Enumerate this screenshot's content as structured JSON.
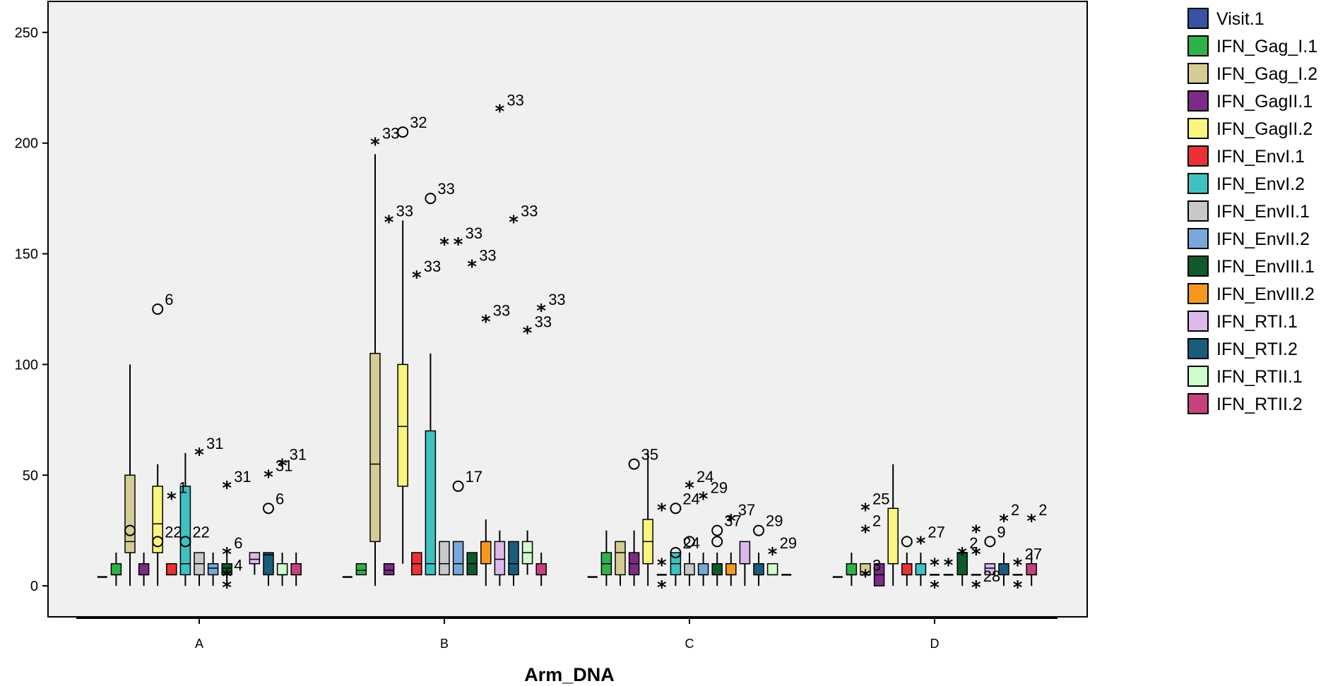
{
  "chart_data": {
    "type": "boxplot",
    "xlabel": "Arm_DNA",
    "ylabel": "",
    "ylim": [
      -14,
      264
    ],
    "yticks": [
      0,
      50,
      100,
      150,
      200,
      250
    ],
    "categories": [
      "A",
      "B",
      "C",
      "D"
    ],
    "series": [
      {
        "name": "Visit.1",
        "color": "#3953a4"
      },
      {
        "name": "IFN_Gag_I.1",
        "color": "#2eb24a"
      },
      {
        "name": "IFN_Gag_I.2",
        "color": "#d3cc95"
      },
      {
        "name": "IFN_GagII.1",
        "color": "#7c2b86"
      },
      {
        "name": "IFN_GagII.2",
        "color": "#f9f57e"
      },
      {
        "name": "IFN_EnvI.1",
        "color": "#ec3135"
      },
      {
        "name": "IFN_EnvI.2",
        "color": "#3fc1c2"
      },
      {
        "name": "IFN_EnvII.1",
        "color": "#c8c8c8"
      },
      {
        "name": "IFN_EnvII.2",
        "color": "#7aa7d9"
      },
      {
        "name": "IFN_EnvIII.1",
        "color": "#0f5a2b"
      },
      {
        "name": "IFN_EnvIII.2",
        "color": "#f6981f"
      },
      {
        "name": "IFN_RTI.1",
        "color": "#dbb9ea"
      },
      {
        "name": "IFN_RTI.2",
        "color": "#1b5c7c"
      },
      {
        "name": "IFN_RTII.1",
        "color": "#cffccc"
      },
      {
        "name": "IFN_RTII.2",
        "color": "#c6417d"
      }
    ],
    "groups": [
      {
        "category": "A",
        "boxes": [
          {
            "series": 0,
            "min": 4,
            "q1": 4,
            "median": 4,
            "q3": 4,
            "max": 4
          },
          {
            "series": 1,
            "min": 0,
            "q1": 5,
            "median": 5,
            "q3": 10,
            "max": 15
          },
          {
            "series": 2,
            "min": 0,
            "q1": 15,
            "median": 20,
            "q3": 50,
            "max": 100
          },
          {
            "series": 3,
            "min": 0,
            "q1": 5,
            "median": 5,
            "q3": 10,
            "max": 15
          },
          {
            "series": 4,
            "min": 0,
            "q1": 15,
            "median": 28,
            "q3": 45,
            "max": 55
          },
          {
            "series": 5,
            "min": 5,
            "q1": 5,
            "median": 5,
            "q3": 10,
            "max": 10
          },
          {
            "series": 6,
            "min": 0,
            "q1": 5,
            "median": 10,
            "q3": 45,
            "max": 60
          },
          {
            "series": 7,
            "min": 0,
            "q1": 5,
            "median": 10,
            "q3": 15,
            "max": 15
          },
          {
            "series": 8,
            "min": 0,
            "q1": 5,
            "median": 8,
            "q3": 10,
            "max": 15
          },
          {
            "series": 9,
            "min": 0,
            "q1": 5,
            "median": 8,
            "q3": 10,
            "max": 15
          },
          {
            "series": 11,
            "min": 5,
            "q1": 10,
            "median": 12,
            "q3": 15,
            "max": 15
          },
          {
            "series": 12,
            "min": 0,
            "q1": 5,
            "median": 14,
            "q3": 15,
            "max": 15
          },
          {
            "series": 13,
            "min": 0,
            "q1": 5,
            "median": 5,
            "q3": 10,
            "max": 15
          },
          {
            "series": 14,
            "min": 0,
            "q1": 5,
            "median": 5,
            "q3": 10,
            "max": 15
          }
        ],
        "outliers": [
          {
            "series": 2,
            "value": 25,
            "kind": "circle",
            "label": ""
          },
          {
            "series": 4,
            "value": 125,
            "kind": "circle",
            "label": "6"
          },
          {
            "series": 4,
            "value": 20,
            "kind": "circle",
            "label": "22"
          },
          {
            "series": 5,
            "value": 40,
            "kind": "star",
            "label": "1"
          },
          {
            "series": 6,
            "value": 20,
            "kind": "circle",
            "label": "22"
          },
          {
            "series": 7,
            "value": 60,
            "kind": "star",
            "label": "31"
          },
          {
            "series": 9,
            "value": 45,
            "kind": "star",
            "label": "31"
          },
          {
            "series": 9,
            "value": 15,
            "kind": "star",
            "label": "6"
          },
          {
            "series": 9,
            "value": 5,
            "kind": "star",
            "label": "4"
          },
          {
            "series": 9,
            "value": 0,
            "kind": "star",
            "label": ""
          },
          {
            "series": 12,
            "value": 50,
            "kind": "star",
            "label": "31"
          },
          {
            "series": 12,
            "value": 35,
            "kind": "circle",
            "label": "6"
          },
          {
            "series": 13,
            "value": 55,
            "kind": "star",
            "label": "31"
          }
        ]
      },
      {
        "category": "B",
        "boxes": [
          {
            "series": 0,
            "min": 4,
            "q1": 4,
            "median": 4,
            "q3": 4,
            "max": 4
          },
          {
            "series": 1,
            "min": 5,
            "q1": 5,
            "median": 7,
            "q3": 10,
            "max": 10
          },
          {
            "series": 2,
            "min": 0,
            "q1": 20,
            "median": 55,
            "q3": 105,
            "max": 195
          },
          {
            "series": 3,
            "min": 5,
            "q1": 5,
            "median": 7,
            "q3": 10,
            "max": 10
          },
          {
            "series": 4,
            "min": 10,
            "q1": 45,
            "median": 72,
            "q3": 100,
            "max": 165
          },
          {
            "series": 5,
            "min": 5,
            "q1": 5,
            "median": 10,
            "q3": 15,
            "max": 15
          },
          {
            "series": 6,
            "min": 5,
            "q1": 5,
            "median": 10,
            "q3": 70,
            "max": 105
          },
          {
            "series": 7,
            "min": 5,
            "q1": 5,
            "median": 10,
            "q3": 20,
            "max": 20
          },
          {
            "series": 8,
            "min": 5,
            "q1": 5,
            "median": 10,
            "q3": 20,
            "max": 20
          },
          {
            "series": 9,
            "min": 5,
            "q1": 5,
            "median": 10,
            "q3": 15,
            "max": 15
          },
          {
            "series": 10,
            "min": 0,
            "q1": 10,
            "median": 20,
            "q3": 20,
            "max": 30
          },
          {
            "series": 11,
            "min": 0,
            "q1": 5,
            "median": 12,
            "q3": 20,
            "max": 25
          },
          {
            "series": 12,
            "min": 0,
            "q1": 5,
            "median": 10,
            "q3": 20,
            "max": 20
          },
          {
            "series": 13,
            "min": 5,
            "q1": 10,
            "median": 15,
            "q3": 20,
            "max": 25
          },
          {
            "series": 14,
            "min": 0,
            "q1": 5,
            "median": 5,
            "q3": 10,
            "max": 15
          }
        ],
        "outliers": [
          {
            "series": 2,
            "value": 200,
            "kind": "star",
            "label": "33"
          },
          {
            "series": 3,
            "value": 165,
            "kind": "star",
            "label": "33"
          },
          {
            "series": 4,
            "value": 205,
            "kind": "circle",
            "label": "32"
          },
          {
            "series": 5,
            "value": 140,
            "kind": "star",
            "label": "33"
          },
          {
            "series": 6,
            "value": 175,
            "kind": "circle",
            "label": "33"
          },
          {
            "series": 7,
            "value": 155,
            "kind": "star",
            "label": ""
          },
          {
            "series": 8,
            "value": 155,
            "kind": "star",
            "label": "33"
          },
          {
            "series": 8,
            "value": 45,
            "kind": "circle",
            "label": "17"
          },
          {
            "series": 9,
            "value": 145,
            "kind": "star",
            "label": "33"
          },
          {
            "series": 10,
            "value": 120,
            "kind": "star",
            "label": "33"
          },
          {
            "series": 11,
            "value": 215,
            "kind": "star",
            "label": "33"
          },
          {
            "series": 12,
            "value": 165,
            "kind": "star",
            "label": "33"
          },
          {
            "series": 13,
            "value": 115,
            "kind": "star",
            "label": "33"
          },
          {
            "series": 14,
            "value": 125,
            "kind": "star",
            "label": "33"
          }
        ]
      },
      {
        "category": "C",
        "boxes": [
          {
            "series": 0,
            "min": 4,
            "q1": 4,
            "median": 4,
            "q3": 4,
            "max": 4
          },
          {
            "series": 1,
            "min": 0,
            "q1": 5,
            "median": 10,
            "q3": 15,
            "max": 25
          },
          {
            "series": 2,
            "min": 0,
            "q1": 5,
            "median": 15,
            "q3": 20,
            "max": 20
          },
          {
            "series": 3,
            "min": 0,
            "q1": 5,
            "median": 10,
            "q3": 15,
            "max": 25
          },
          {
            "series": 4,
            "min": 0,
            "q1": 10,
            "median": 20,
            "q3": 30,
            "max": 60
          },
          {
            "series": 5,
            "min": 5,
            "q1": 5,
            "median": 5,
            "q3": 5,
            "max": 5
          },
          {
            "series": 6,
            "min": 0,
            "q1": 5,
            "median": 10,
            "q3": 15,
            "max": 15
          },
          {
            "series": 7,
            "min": 0,
            "q1": 5,
            "median": 5,
            "q3": 10,
            "max": 15
          },
          {
            "series": 8,
            "min": 0,
            "q1": 5,
            "median": 5,
            "q3": 10,
            "max": 15
          },
          {
            "series": 9,
            "min": 0,
            "q1": 5,
            "median": 5,
            "q3": 10,
            "max": 15
          },
          {
            "series": 10,
            "min": 0,
            "q1": 5,
            "median": 5,
            "q3": 10,
            "max": 15
          },
          {
            "series": 11,
            "min": 0,
            "q1": 10,
            "median": 10,
            "q3": 20,
            "max": 20
          },
          {
            "series": 12,
            "min": 0,
            "q1": 5,
            "median": 5,
            "q3": 10,
            "max": 15
          },
          {
            "series": 13,
            "min": 5,
            "q1": 5,
            "median": 5,
            "q3": 10,
            "max": 10
          },
          {
            "series": 14,
            "min": 5,
            "q1": 5,
            "median": 5,
            "q3": 5,
            "max": 5
          }
        ],
        "outliers": [
          {
            "series": 3,
            "value": 55,
            "kind": "circle",
            "label": "35"
          },
          {
            "series": 5,
            "value": 35,
            "kind": "star",
            "label": ""
          },
          {
            "series": 5,
            "value": 10,
            "kind": "star",
            "label": ""
          },
          {
            "series": 5,
            "value": 0,
            "kind": "star",
            "label": ""
          },
          {
            "series": 6,
            "value": 35,
            "kind": "circle",
            "label": "24"
          },
          {
            "series": 6,
            "value": 15,
            "kind": "circle",
            "label": "24"
          },
          {
            "series": 7,
            "value": 20,
            "kind": "circle",
            "label": ""
          },
          {
            "series": 7,
            "value": 45,
            "kind": "star",
            "label": "24"
          },
          {
            "series": 8,
            "value": 40,
            "kind": "star",
            "label": "29"
          },
          {
            "series": 9,
            "value": 25,
            "kind": "circle",
            "label": "37"
          },
          {
            "series": 9,
            "value": 20,
            "kind": "circle",
            "label": ""
          },
          {
            "series": 10,
            "value": 30,
            "kind": "star",
            "label": "37"
          },
          {
            "series": 12,
            "value": 25,
            "kind": "circle",
            "label": "29"
          },
          {
            "series": 13,
            "value": 15,
            "kind": "star",
            "label": "29"
          }
        ]
      },
      {
        "category": "D",
        "boxes": [
          {
            "series": 0,
            "min": 4,
            "q1": 4,
            "median": 4,
            "q3": 4,
            "max": 4
          },
          {
            "series": 1,
            "min": 0,
            "q1": 5,
            "median": 5,
            "q3": 10,
            "max": 15
          },
          {
            "series": 2,
            "min": 5,
            "q1": 5,
            "median": 5,
            "q3": 10,
            "max": 10
          },
          {
            "series": 3,
            "min": 0,
            "q1": 0,
            "median": 5,
            "q3": 10,
            "max": 10
          },
          {
            "series": 4,
            "min": 0,
            "q1": 10,
            "median": 10,
            "q3": 35,
            "max": 55
          },
          {
            "series": 5,
            "min": 0,
            "q1": 5,
            "median": 5,
            "q3": 10,
            "max": 15
          },
          {
            "series": 6,
            "min": 0,
            "q1": 5,
            "median": 5,
            "q3": 10,
            "max": 15
          },
          {
            "series": 7,
            "min": 5,
            "q1": 5,
            "median": 5,
            "q3": 5,
            "max": 5
          },
          {
            "series": 8,
            "min": 5,
            "q1": 5,
            "median": 5,
            "q3": 5,
            "max": 5
          },
          {
            "series": 9,
            "min": 0,
            "q1": 5,
            "median": 15,
            "q3": 15,
            "max": 15
          },
          {
            "series": 10,
            "min": 5,
            "q1": 5,
            "median": 5,
            "q3": 5,
            "max": 5
          },
          {
            "series": 11,
            "min": 5,
            "q1": 5,
            "median": 8,
            "q3": 10,
            "max": 10
          },
          {
            "series": 12,
            "min": 0,
            "q1": 5,
            "median": 10,
            "q3": 10,
            "max": 15
          },
          {
            "series": 13,
            "min": 5,
            "q1": 5,
            "median": 5,
            "q3": 5,
            "max": 5
          },
          {
            "series": 14,
            "min": 0,
            "q1": 5,
            "median": 5,
            "q3": 10,
            "max": 15
          }
        ],
        "outliers": [
          {
            "series": 2,
            "value": 35,
            "kind": "star",
            "label": "25"
          },
          {
            "series": 2,
            "value": 25,
            "kind": "star",
            "label": "2"
          },
          {
            "series": 2,
            "value": 5,
            "kind": "star",
            "label": "3"
          },
          {
            "series": 5,
            "value": 20,
            "kind": "circle",
            "label": ""
          },
          {
            "series": 6,
            "value": 20,
            "kind": "star",
            "label": "27"
          },
          {
            "series": 7,
            "value": 10,
            "kind": "star",
            "label": ""
          },
          {
            "series": 7,
            "value": 0,
            "kind": "star",
            "label": ""
          },
          {
            "series": 8,
            "value": 10,
            "kind": "star",
            "label": ""
          },
          {
            "series": 9,
            "value": 15,
            "kind": "star",
            "label": "2"
          },
          {
            "series": 10,
            "value": 25,
            "kind": "star",
            "label": ""
          },
          {
            "series": 10,
            "value": 15,
            "kind": "star",
            "label": ""
          },
          {
            "series": 10,
            "value": 0,
            "kind": "star",
            "label": "28"
          },
          {
            "series": 11,
            "value": 20,
            "kind": "circle",
            "label": "9"
          },
          {
            "series": 12,
            "value": 30,
            "kind": "star",
            "label": "2"
          },
          {
            "series": 13,
            "value": 10,
            "kind": "star",
            "label": "27"
          },
          {
            "series": 13,
            "value": 0,
            "kind": "star",
            "label": ""
          },
          {
            "series": 14,
            "value": 30,
            "kind": "star",
            "label": "2"
          }
        ]
      }
    ]
  }
}
